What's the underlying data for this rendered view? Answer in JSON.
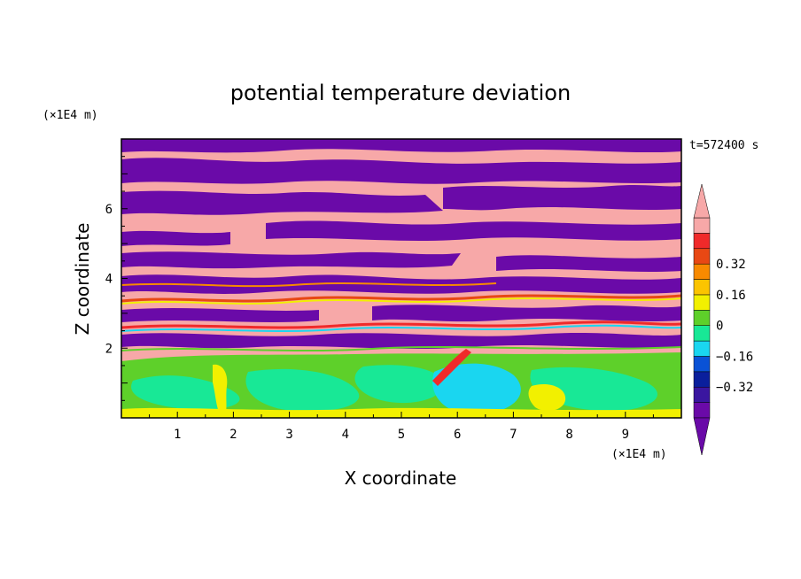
{
  "chart_data": {
    "type": "heatmap",
    "title": "potential temperature deviation",
    "xlabel": "X coordinate",
    "ylabel": "Z coordinate",
    "x_unit": "(×1E4 m)",
    "y_unit": "(×1E4 m)",
    "time_label": "t=572400 s",
    "xlim": [
      0,
      10
    ],
    "ylim": [
      0,
      8
    ],
    "x_ticks": [
      "1",
      "2",
      "3",
      "4",
      "5",
      "6",
      "7",
      "8",
      "9"
    ],
    "y_ticks": [
      "2",
      "4",
      "6"
    ],
    "colorbar": {
      "levels": [
        -0.48,
        -0.4,
        -0.32,
        -0.24,
        -0.16,
        -0.08,
        0,
        0.08,
        0.16,
        0.24,
        0.32,
        0.4,
        0.48
      ],
      "tick_labels": [
        "0.32",
        "0.16",
        "0",
        "−0.16",
        "−0.32"
      ],
      "colors": [
        "#6a0aa8",
        "#3a16a0",
        "#0a1f9c",
        "#0a52d6",
        "#1ad6f0",
        "#18e896",
        "#5ed02a",
        "#f2f000",
        "#fbc400",
        "#f88a00",
        "#e84814",
        "#f02a2a",
        "#f7a8a8"
      ],
      "extend": "both"
    },
    "structure": [
      {
        "z_range": [
          0,
          2
        ],
        "description_values": "mostly between -0.08 and 0.16"
      },
      {
        "z_range": [
          2,
          5
        ],
        "description_values": "alternating bands of about -0.48 and 0.48 with mixed values"
      },
      {
        "z_range": [
          5,
          8
        ],
        "description_values": "alternating layers of about -0.48 and 0.48"
      }
    ]
  }
}
